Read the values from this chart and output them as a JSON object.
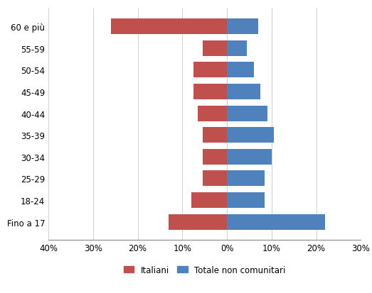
{
  "categories": [
    "Fino a 17",
    "18-24",
    "25-29",
    "30-34",
    "35-39",
    "40-44",
    "45-49",
    "50-54",
    "55-59",
    "60 e più"
  ],
  "italiani": [
    -13.0,
    -8.0,
    -5.5,
    -5.5,
    -5.5,
    -6.5,
    -7.5,
    -7.5,
    -5.5,
    -26.0
  ],
  "non_comunitari": [
    22.0,
    8.5,
    8.5,
    10.0,
    10.5,
    9.0,
    7.5,
    6.0,
    4.5,
    7.0
  ],
  "color_italiani": "#C0504D",
  "color_non_comunitari": "#4F81BD",
  "xlim": [
    -40,
    30
  ],
  "xticks": [
    -40,
    -30,
    -20,
    -10,
    0,
    10,
    20,
    30
  ],
  "xticklabels": [
    "40%",
    "30%",
    "20%",
    "10%",
    "0%",
    "10%",
    "20%",
    "30%"
  ],
  "legend_italiani": "Italiani",
  "legend_non_comunitari": "Totale non comunitari",
  "bar_height": 0.72,
  "background_color": "#ffffff",
  "grid_color": "#c8c8c8"
}
